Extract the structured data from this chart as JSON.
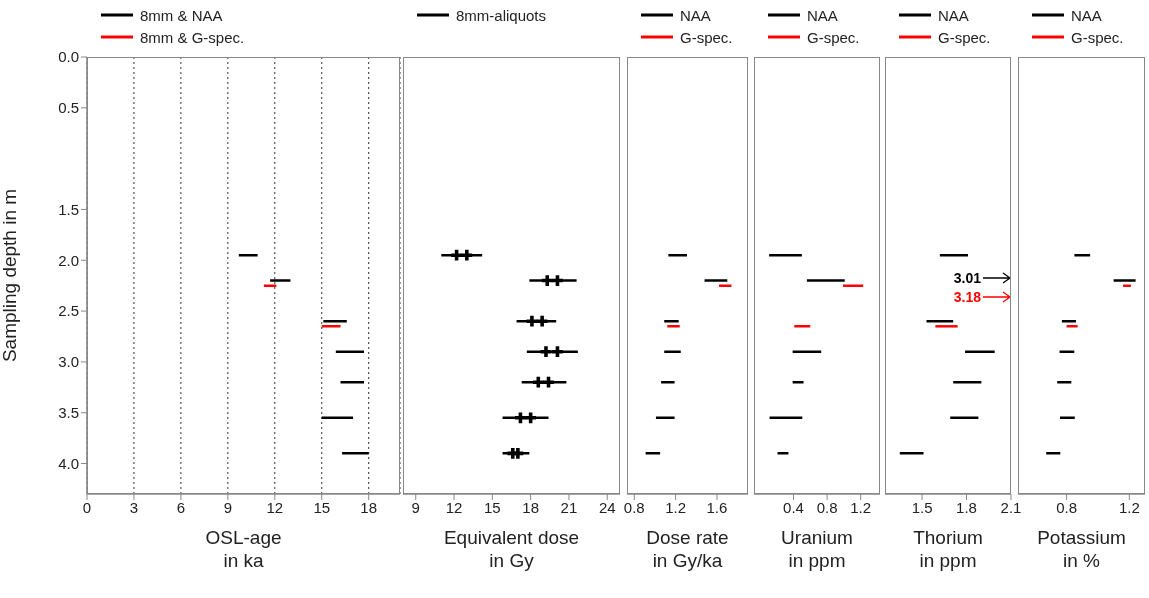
{
  "chart_data": [
    {
      "type": "line",
      "xlabel": "OSL-age\nin ka",
      "ylabel": "Sampling depth in m",
      "xlim": [
        0,
        20
      ],
      "xticks": [
        0,
        3,
        6,
        9,
        12,
        15,
        18
      ],
      "ylim": [
        4.3,
        0
      ],
      "yticks": [
        {
          "value": 0,
          "label": "0.0"
        },
        {
          "value": 0.5,
          "label": "0.5"
        },
        {
          "value": 1.5,
          "label": "1.5"
        },
        {
          "value": 2,
          "label": "2.0"
        },
        {
          "value": 2.5,
          "label": "2.5"
        },
        {
          "value": 3,
          "label": "3.0"
        },
        {
          "value": 3.5,
          "label": "3.5"
        },
        {
          "value": 4,
          "label": "4.0"
        }
      ],
      "grid": "x",
      "legend": "top",
      "marker": "none",
      "line_style": "solid",
      "series": [
        {
          "name": "8mm & NAA",
          "color": "#000000",
          "x": [
            9.7,
            10.9,
            null,
            11.7,
            13.0,
            null,
            15.1,
            16.6,
            null,
            15.9,
            17.7,
            null,
            16.2,
            17.7,
            null,
            15.0,
            17.0,
            null,
            16.3,
            18.0
          ],
          "values": [
            1.95,
            1.95,
            null,
            2.2,
            2.2,
            null,
            2.6,
            2.6,
            null,
            2.9,
            2.9,
            null,
            3.2,
            3.2,
            null,
            3.55,
            3.55,
            null,
            3.9,
            3.9
          ]
        },
        {
          "name": "8mm & G-spec.",
          "color": "#ff0000",
          "x": [
            11.3,
            12.1,
            null,
            15.0,
            16.2
          ],
          "values": [
            2.25,
            2.25,
            null,
            2.65,
            2.65
          ]
        }
      ]
    },
    {
      "type": "line",
      "xlabel": "Equivalent dose\nin Gy",
      "xlim": [
        8,
        25
      ],
      "xticks": [
        9,
        12,
        15,
        18,
        21,
        24
      ],
      "ylim": [
        4.3,
        0
      ],
      "tick_labels": "x",
      "legend": "top",
      "marker": "none",
      "line_style": "solid",
      "series": [
        {
          "name": "8mm-aliquots",
          "color": "#000000",
          "x": [
            11.0,
            14.2,
            null,
            17.9,
            21.6,
            null,
            16.9,
            20.0,
            null,
            17.7,
            21.7,
            null,
            17.3,
            20.8,
            null,
            15.8,
            19.4,
            null,
            15.8,
            17.9
          ],
          "values": [
            1.95,
            1.95,
            null,
            2.2,
            2.2,
            null,
            2.6,
            2.6,
            null,
            2.9,
            2.9,
            null,
            3.2,
            3.2,
            null,
            3.55,
            3.55,
            null,
            3.9,
            3.9
          ]
        },
        {
          "type": "scatter",
          "color": "#000000",
          "marker": "cross",
          "x": [
            12.2,
            13.0,
            19.3,
            20.1,
            18.1,
            18.9,
            19.2,
            20.1,
            18.6,
            19.4,
            17.2,
            18.0,
            16.6,
            17.0
          ],
          "values": [
            1.95,
            1.95,
            2.2,
            2.2,
            2.6,
            2.6,
            2.9,
            2.9,
            3.2,
            3.2,
            3.55,
            3.55,
            3.9,
            3.9
          ]
        }
      ]
    },
    {
      "type": "line",
      "xlabel": "Dose rate\nin Gy/ka",
      "xlim": [
        0.73,
        1.9
      ],
      "xticks": [
        0.8,
        1.2,
        1.6
      ],
      "ylim": [
        4.3,
        0
      ],
      "tick_labels": "x",
      "legend": "top",
      "marker": "none",
      "line_style": "solid",
      "series": [
        {
          "name": "NAA",
          "color": "#000000",
          "x": [
            1.13,
            1.31,
            null,
            1.48,
            1.7,
            null,
            1.09,
            1.23,
            null,
            1.09,
            1.25,
            null,
            1.06,
            1.19,
            null,
            1.01,
            1.19,
            null,
            0.91,
            1.05
          ],
          "values": [
            1.95,
            1.95,
            null,
            2.2,
            2.2,
            null,
            2.6,
            2.6,
            null,
            2.9,
            2.9,
            null,
            3.2,
            3.2,
            null,
            3.55,
            3.55,
            null,
            3.9,
            3.9
          ]
        },
        {
          "name": "G-spec.",
          "color": "#ff0000",
          "x": [
            1.62,
            1.74,
            null,
            1.12,
            1.24
          ],
          "values": [
            2.25,
            2.25,
            null,
            2.65,
            2.65
          ]
        }
      ]
    },
    {
      "type": "line",
      "xlabel": "Uranium\nin ppm",
      "xlim": [
        -0.07,
        1.43
      ],
      "xticks": [
        0.4,
        0.8,
        1.2
      ],
      "ylim": [
        4.3,
        0
      ],
      "tick_labels": "x",
      "legend": "top",
      "marker": "none",
      "line_style": "solid",
      "series": [
        {
          "name": "NAA",
          "color": "#000000",
          "x": [
            0.11,
            0.5,
            null,
            0.56,
            1.01,
            null,
            0.39,
            0.73,
            null,
            0.39,
            0.52,
            null,
            0.115,
            0.505,
            null,
            0.21,
            0.34
          ],
          "values": [
            1.95,
            1.95,
            null,
            2.2,
            2.2,
            null,
            2.9,
            2.9,
            null,
            3.2,
            3.2,
            null,
            3.55,
            3.55,
            null,
            3.9,
            3.9
          ]
        },
        {
          "name": "G-spec.",
          "color": "#ff0000",
          "x": [
            0.99,
            1.23,
            null,
            0.41,
            0.6
          ],
          "values": [
            2.25,
            2.25,
            null,
            2.65,
            2.65
          ]
        }
      ]
    },
    {
      "type": "line",
      "xlabel": "Thorium\nin ppm",
      "xlim": [
        1.25,
        2.1
      ],
      "xticks": [
        1.5,
        1.8,
        2.1
      ],
      "ylim": [
        4.3,
        0
      ],
      "tick_labels": "x",
      "legend": "top",
      "marker": "none",
      "line_style": "solid",
      "annotations": [
        "3.01",
        "3.18"
      ],
      "series": [
        {
          "name": "NAA",
          "color": "#000000",
          "x": [
            1.62,
            1.81,
            null,
            1.53,
            1.71,
            null,
            1.79,
            1.99,
            null,
            1.71,
            1.9,
            null,
            1.69,
            1.88,
            null,
            1.35,
            1.51
          ],
          "values": [
            1.95,
            1.95,
            null,
            2.6,
            2.6,
            null,
            2.9,
            2.9,
            null,
            3.2,
            3.2,
            null,
            3.55,
            3.55,
            null,
            3.9,
            3.9
          ]
        },
        {
          "name": "G-spec.",
          "color": "#ff0000",
          "x": [
            1.59,
            1.74
          ],
          "values": [
            2.65,
            2.65
          ]
        }
      ]
    },
    {
      "type": "line",
      "xlabel": "Potassium\nin %",
      "xlim": [
        0.49,
        1.3
      ],
      "xticks": [
        0.8,
        1.2
      ],
      "ylim": [
        4.3,
        0
      ],
      "tick_labels": "x",
      "legend": "top",
      "marker": "none",
      "line_style": "solid",
      "series": [
        {
          "name": "NAA",
          "color": "#000000",
          "x": [
            0.85,
            0.95,
            null,
            1.1,
            1.24,
            null,
            0.77,
            0.86,
            null,
            0.755,
            0.849,
            null,
            0.74,
            0.83,
            null,
            0.758,
            0.852,
            null,
            0.67,
            0.76
          ],
          "values": [
            1.95,
            1.95,
            null,
            2.2,
            2.2,
            null,
            2.6,
            2.6,
            null,
            2.9,
            2.9,
            null,
            3.2,
            3.2,
            null,
            3.55,
            3.55,
            null,
            3.9,
            3.9
          ]
        },
        {
          "name": "G-spec.",
          "color": "#ff0000",
          "x": [
            1.16,
            1.21,
            null,
            0.8,
            0.87
          ],
          "values": [
            2.25,
            2.25,
            null,
            2.65,
            2.65
          ]
        }
      ]
    }
  ]
}
